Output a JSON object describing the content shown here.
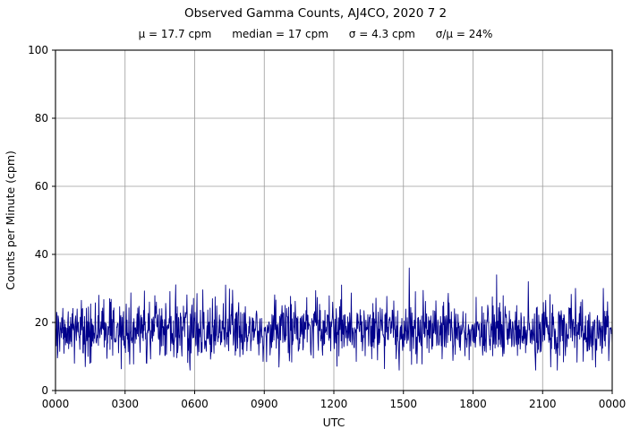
{
  "chart_data": {
    "type": "line",
    "title": "Observed Gamma Counts, AJ4CO, 2020 7 2",
    "stats_line": "μ = 17.7 cpm      median = 17 cpm      σ = 4.3 cpm      σ/μ = 24%",
    "stats": {
      "mu_cpm": 17.7,
      "median_cpm": 17,
      "sigma_cpm": 4.3,
      "sigma_over_mu_pct": 24
    },
    "xlabel": "UTC",
    "ylabel": "Counts per Minute (cpm)",
    "ylim": [
      0,
      100
    ],
    "yticks": [
      0,
      20,
      40,
      60,
      80,
      100
    ],
    "xlim_minutes": [
      0,
      1440
    ],
    "xtick_minutes": [
      0,
      180,
      360,
      540,
      720,
      900,
      1080,
      1260,
      1440
    ],
    "xtick_labels": [
      "0000",
      "0300",
      "0600",
      "0900",
      "1200",
      "1500",
      "1800",
      "2100",
      "0000"
    ],
    "grid": true,
    "grid_color": "#9b9b9b",
    "border_color": "#000000",
    "legend": "none",
    "series": [
      {
        "name": "observed gamma counts",
        "color": "#00008b",
        "samples_per_minute": 1,
        "generator": {
          "kind": "gaussian-noise",
          "n": 1441,
          "mean": 17.7,
          "sigma": 4.3,
          "min_clip": 6,
          "seed": 20200702,
          "spikes": [
            [
              112,
              28
            ],
            [
              140,
              27
            ],
            [
              440,
              31
            ],
            [
              740,
              31
            ],
            [
              915,
              36
            ],
            [
              1141,
              34
            ],
            [
              1223,
              32
            ],
            [
              1345,
              30
            ]
          ]
        }
      }
    ]
  }
}
